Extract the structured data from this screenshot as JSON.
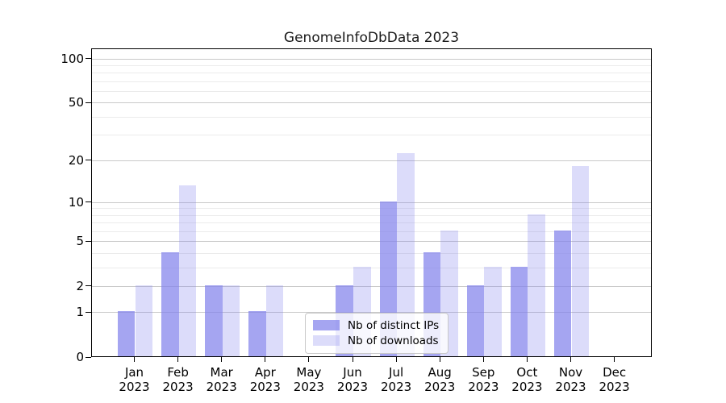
{
  "title": "GenomeInfoDbData 2023",
  "chart_data": {
    "type": "bar",
    "title": "GenomeInfoDbData 2023",
    "categories": [
      {
        "month": "Jan",
        "year": "2023"
      },
      {
        "month": "Feb",
        "year": "2023"
      },
      {
        "month": "Mar",
        "year": "2023"
      },
      {
        "month": "Apr",
        "year": "2023"
      },
      {
        "month": "May",
        "year": "2023"
      },
      {
        "month": "Jun",
        "year": "2023"
      },
      {
        "month": "Jul",
        "year": "2023"
      },
      {
        "month": "Aug",
        "year": "2023"
      },
      {
        "month": "Sep",
        "year": "2023"
      },
      {
        "month": "Oct",
        "year": "2023"
      },
      {
        "month": "Nov",
        "year": "2023"
      },
      {
        "month": "Dec",
        "year": "2023"
      }
    ],
    "series": [
      {
        "key": "distinct-ips",
        "name": "Nb of distinct IPs",
        "color": "#8282ec",
        "fill_opacity": 0.72,
        "values": [
          1,
          4,
          2,
          1,
          0,
          2,
          10,
          4,
          2,
          3,
          6,
          0
        ]
      },
      {
        "key": "downloads",
        "name": "Nb of downloads",
        "color": "#8282ec",
        "fill_opacity": 0.28,
        "values": [
          2,
          13,
          2,
          2,
          0,
          3,
          22,
          6,
          3,
          8,
          18,
          0
        ]
      }
    ],
    "y_axis": {
      "scale": "log1p",
      "range": [
        0,
        100
      ],
      "major_ticks": [
        0,
        1,
        2,
        5,
        10,
        20,
        50,
        100
      ],
      "minor_ticks": [
        3,
        4,
        6,
        7,
        8,
        9,
        30,
        40,
        60,
        70,
        80,
        90
      ]
    },
    "x_axis": {
      "tick_label_year": "2023"
    },
    "grid": true,
    "legend_position": "lower center"
  },
  "colors": {
    "bar_base": "#8282ec",
    "bar_ips_effective": "#a8a8f0",
    "bar_downloads_effective": "#dcdcf6",
    "grid_major": "#c9c9c9",
    "grid_minor": "#ebebeb",
    "axis": "#000000",
    "legend_border": "#c9c9c9"
  }
}
